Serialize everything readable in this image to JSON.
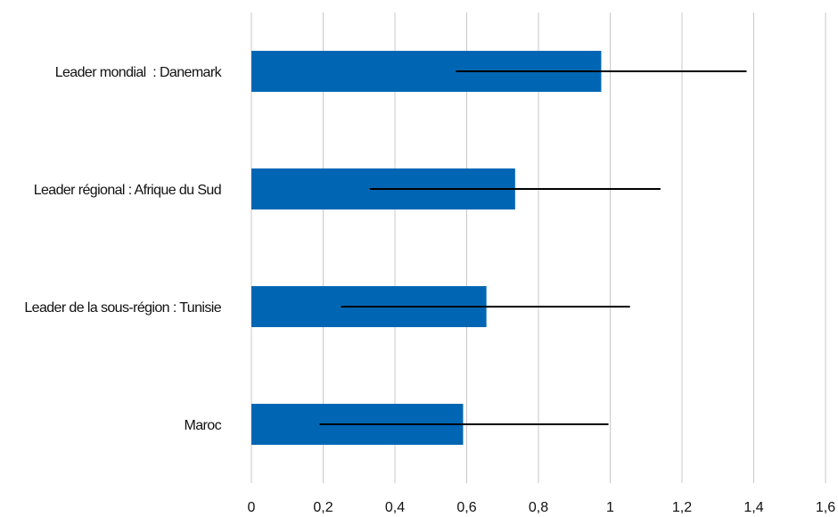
{
  "chart_data": {
    "type": "bar",
    "orientation": "horizontal",
    "title": "",
    "xlabel": "",
    "ylabel": "",
    "categories": [
      "Leader mondial  : Danemark",
      "Leader régional : Afrique du Sud",
      "Leader de la sous-région : Tunisie",
      "Maroc"
    ],
    "values": [
      0.975,
      0.735,
      0.655,
      0.59
    ],
    "error_bars": [
      {
        "low": 0.57,
        "high": 1.38
      },
      {
        "low": 0.33,
        "high": 1.14
      },
      {
        "low": 0.25,
        "high": 1.055
      },
      {
        "low": 0.19,
        "high": 0.995
      }
    ],
    "xlim": [
      0,
      1.6
    ],
    "x_ticks": [
      "0",
      "0,2",
      "0,4",
      "0,6",
      "0,8",
      "1",
      "1,2",
      "1,4",
      "1,6"
    ],
    "grid": true,
    "legend": "none",
    "colors": {
      "bar": "#0066b3",
      "error_bar": "#000000",
      "grid": "#c8c8c8"
    }
  }
}
